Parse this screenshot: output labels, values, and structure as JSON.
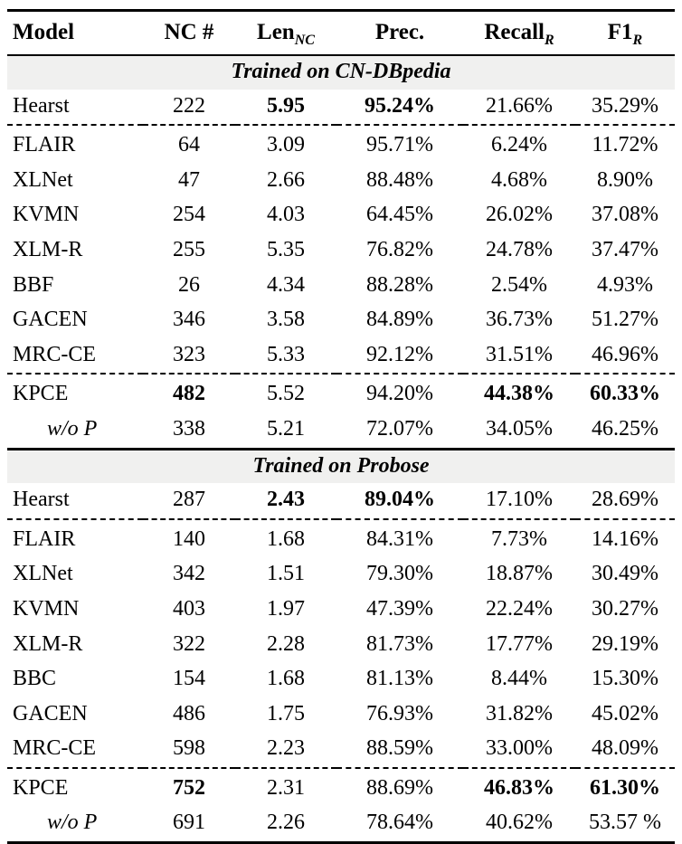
{
  "colors": {
    "section_band_bg": "#f0f0ef",
    "text": "#000000",
    "rule": "#000000"
  },
  "table": {
    "columns": [
      {
        "label": "Model",
        "sub": ""
      },
      {
        "label": "NC #",
        "sub": ""
      },
      {
        "label": "Len",
        "sub": "NC"
      },
      {
        "label": "Prec.",
        "sub": ""
      },
      {
        "label": "Recall",
        "sub": "R"
      },
      {
        "label": "F1",
        "sub": "R"
      }
    ],
    "sections": [
      {
        "title": "Trained on CN-DBpedia",
        "groups": [
          {
            "rows": [
              {
                "model": "Hearst",
                "italic": false,
                "values": [
                  "222",
                  "5.95",
                  "95.24%",
                  "21.66%",
                  "35.29%"
                ],
                "bold": [
                  false,
                  true,
                  true,
                  false,
                  false
                ]
              }
            ]
          },
          {
            "rows": [
              {
                "model": "FLAIR",
                "italic": false,
                "values": [
                  "64",
                  "3.09",
                  "95.71%",
                  "6.24%",
                  "11.72%"
                ],
                "bold": [
                  false,
                  false,
                  false,
                  false,
                  false
                ]
              },
              {
                "model": "XLNet",
                "italic": false,
                "values": [
                  "47",
                  "2.66",
                  "88.48%",
                  "4.68%",
                  "8.90%"
                ],
                "bold": [
                  false,
                  false,
                  false,
                  false,
                  false
                ]
              },
              {
                "model": "KVMN",
                "italic": false,
                "values": [
                  "254",
                  "4.03",
                  "64.45%",
                  "26.02%",
                  "37.08%"
                ],
                "bold": [
                  false,
                  false,
                  false,
                  false,
                  false
                ]
              },
              {
                "model": "XLM-R",
                "italic": false,
                "values": [
                  "255",
                  "5.35",
                  "76.82%",
                  "24.78%",
                  "37.47%"
                ],
                "bold": [
                  false,
                  false,
                  false,
                  false,
                  false
                ]
              },
              {
                "model": "BBF",
                "italic": false,
                "values": [
                  "26",
                  "4.34",
                  "88.28%",
                  "2.54%",
                  "4.93%"
                ],
                "bold": [
                  false,
                  false,
                  false,
                  false,
                  false
                ]
              },
              {
                "model": "GACEN",
                "italic": false,
                "values": [
                  "346",
                  "3.58",
                  "84.89%",
                  "36.73%",
                  "51.27%"
                ],
                "bold": [
                  false,
                  false,
                  false,
                  false,
                  false
                ]
              },
              {
                "model": "MRC-CE",
                "italic": false,
                "values": [
                  "323",
                  "5.33",
                  "92.12%",
                  "31.51%",
                  "46.96%"
                ],
                "bold": [
                  false,
                  false,
                  false,
                  false,
                  false
                ]
              }
            ]
          },
          {
            "rows": [
              {
                "model": "KPCE",
                "italic": false,
                "values": [
                  "482",
                  "5.52",
                  "94.20%",
                  "44.38%",
                  "60.33%"
                ],
                "bold": [
                  true,
                  false,
                  false,
                  true,
                  true
                ]
              },
              {
                "model": "w/o P",
                "italic": true,
                "values": [
                  "338",
                  "5.21",
                  "72.07%",
                  "34.05%",
                  "46.25%"
                ],
                "bold": [
                  false,
                  false,
                  false,
                  false,
                  false
                ]
              }
            ]
          }
        ]
      },
      {
        "title": "Trained on Probose",
        "groups": [
          {
            "rows": [
              {
                "model": "Hearst",
                "italic": false,
                "values": [
                  "287",
                  "2.43",
                  "89.04%",
                  "17.10%",
                  "28.69%"
                ],
                "bold": [
                  false,
                  true,
                  true,
                  false,
                  false
                ]
              }
            ]
          },
          {
            "rows": [
              {
                "model": "FLAIR",
                "italic": false,
                "values": [
                  "140",
                  "1.68",
                  "84.31%",
                  "7.73%",
                  "14.16%"
                ],
                "bold": [
                  false,
                  false,
                  false,
                  false,
                  false
                ]
              },
              {
                "model": "XLNet",
                "italic": false,
                "values": [
                  "342",
                  "1.51",
                  "79.30%",
                  "18.87%",
                  "30.49%"
                ],
                "bold": [
                  false,
                  false,
                  false,
                  false,
                  false
                ]
              },
              {
                "model": "KVMN",
                "italic": false,
                "values": [
                  "403",
                  "1.97",
                  "47.39%",
                  "22.24%",
                  "30.27%"
                ],
                "bold": [
                  false,
                  false,
                  false,
                  false,
                  false
                ]
              },
              {
                "model": "XLM-R",
                "italic": false,
                "values": [
                  "322",
                  "2.28",
                  "81.73%",
                  "17.77%",
                  "29.19%"
                ],
                "bold": [
                  false,
                  false,
                  false,
                  false,
                  false
                ]
              },
              {
                "model": "BBC",
                "italic": false,
                "values": [
                  "154",
                  "1.68",
                  "81.13%",
                  "8.44%",
                  "15.30%"
                ],
                "bold": [
                  false,
                  false,
                  false,
                  false,
                  false
                ]
              },
              {
                "model": "GACEN",
                "italic": false,
                "values": [
                  "486",
                  "1.75",
                  "76.93%",
                  "31.82%",
                  "45.02%"
                ],
                "bold": [
                  false,
                  false,
                  false,
                  false,
                  false
                ]
              },
              {
                "model": "MRC-CE",
                "italic": false,
                "values": [
                  "598",
                  "2.23",
                  "88.59%",
                  "33.00%",
                  "48.09%"
                ],
                "bold": [
                  false,
                  false,
                  false,
                  false,
                  false
                ]
              }
            ]
          },
          {
            "rows": [
              {
                "model": "KPCE",
                "italic": false,
                "values": [
                  "752",
                  "2.31",
                  "88.69%",
                  "46.83%",
                  "61.30%"
                ],
                "bold": [
                  true,
                  false,
                  false,
                  true,
                  true
                ]
              },
              {
                "model": "w/o P",
                "italic": true,
                "values": [
                  "691",
                  "2.26",
                  "78.64%",
                  "40.62%",
                  "53.57 %"
                ],
                "bold": [
                  false,
                  false,
                  false,
                  false,
                  false
                ]
              }
            ]
          }
        ]
      }
    ]
  }
}
